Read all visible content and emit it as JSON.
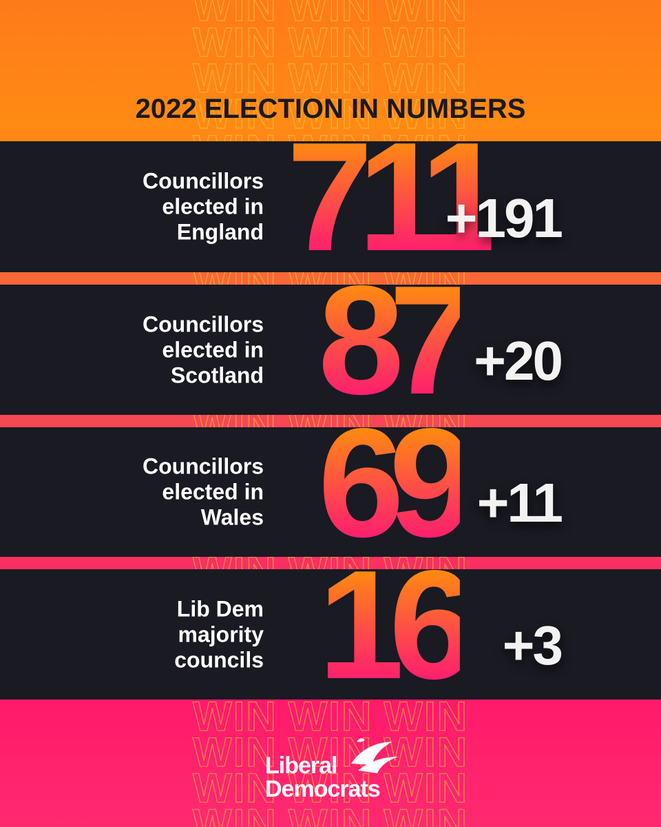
{
  "title": "2022 ELECTION IN NUMBERS",
  "rows": [
    {
      "label": [
        "Councillors",
        "elected in",
        "England"
      ],
      "value": "711",
      "change": "+191"
    },
    {
      "label": [
        "Councillors",
        "elected in",
        "Scotland"
      ],
      "value": "87",
      "change": "+20"
    },
    {
      "label": [
        "Councillors",
        "elected in",
        "Wales"
      ],
      "value": "69",
      "change": "+11"
    },
    {
      "label": [
        "Lib Dem",
        "majority",
        "councils"
      ],
      "value": "16",
      "change": "+3"
    }
  ],
  "background_text": "WIN",
  "logo": [
    "Liberal",
    "Democrats"
  ]
}
